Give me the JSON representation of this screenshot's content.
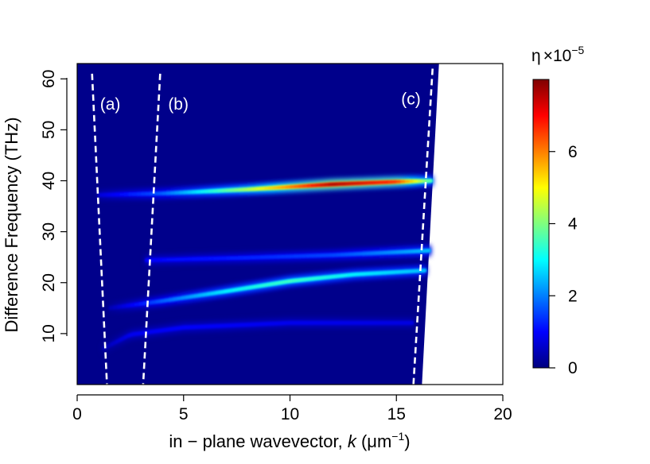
{
  "chart_data": {
    "type": "heatmap",
    "xlabel": {
      "prefix": "in − plane wavevector,  ",
      "var": "k",
      "unit_open": " (μm",
      "unit_exp": "−1",
      "unit_close": ")"
    },
    "ylabel": "Difference Frequency (THz)",
    "xlim": [
      0,
      20
    ],
    "ylim": [
      0,
      63
    ],
    "xticks": [
      0,
      5,
      10,
      15,
      20
    ],
    "yticks": [
      10,
      20,
      30,
      40,
      50,
      60
    ],
    "colorbar": {
      "title_base": "η",
      "title_mult": "×",
      "title_pow_base": "10",
      "title_pow_exp": "−5",
      "min": 0,
      "max": 8,
      "ticks": [
        0,
        2,
        4,
        6
      ],
      "colormap": [
        "#00007F",
        "#0000FF",
        "#007FFF",
        "#00FFFF",
        "#7FFF7F",
        "#FFFF00",
        "#FF7F00",
        "#FF0000",
        "#7F0000"
      ]
    },
    "background_color": "#00008B",
    "valid_region_boundary": [
      [
        0,
        63
      ],
      [
        17.0,
        63
      ],
      [
        16.2,
        0
      ],
      [
        0,
        0
      ]
    ],
    "dashed_lines": [
      {
        "label": "(a)",
        "points": [
          [
            0.7,
            61
          ],
          [
            1.4,
            0
          ]
        ]
      },
      {
        "label": "(b)",
        "points": [
          [
            3.9,
            61
          ],
          [
            3.1,
            0
          ]
        ]
      },
      {
        "label": "(c)",
        "points": [
          [
            16.7,
            62
          ],
          [
            15.8,
            0
          ]
        ]
      }
    ],
    "bands": [
      {
        "name": "band-37-40THz",
        "x": [
          1.0,
          4,
          8,
          12,
          15,
          16.7
        ],
        "y": [
          37.2,
          37.5,
          38.3,
          39.3,
          39.8,
          40.0
        ],
        "peak": [
          0.7,
          1.8,
          4.5,
          7.8,
          6.8,
          3.5
        ]
      },
      {
        "name": "band-24-26THz",
        "x": [
          3.2,
          8,
          12,
          16.6
        ],
        "y": [
          24.4,
          24.9,
          25.4,
          26.3
        ],
        "peak": [
          1.0,
          1.3,
          1.6,
          2.6
        ]
      },
      {
        "name": "band-15-23THz",
        "x": [
          1.5,
          4,
          7,
          10,
          13,
          16.4
        ],
        "y": [
          15.0,
          16.4,
          18.3,
          20.3,
          21.6,
          22.4
        ],
        "peak": [
          0.4,
          1.8,
          3.0,
          3.6,
          3.0,
          2.6
        ]
      },
      {
        "name": "band-7-12THz",
        "x": [
          1.2,
          2.5,
          5,
          10,
          15.8
        ],
        "y": [
          7.0,
          9.8,
          11.2,
          12.1,
          12.1
        ],
        "peak": [
          0.4,
          0.9,
          1.0,
          0.9,
          0.8
        ]
      }
    ]
  }
}
